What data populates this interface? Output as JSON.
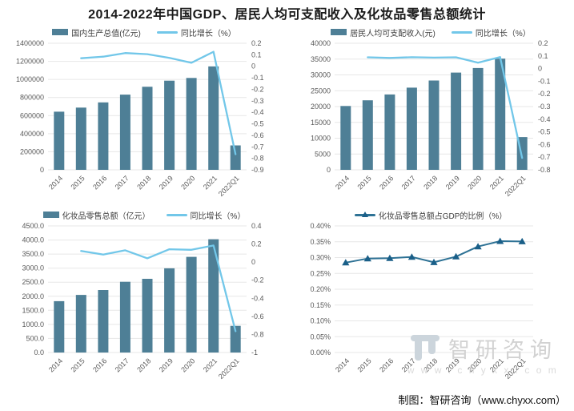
{
  "title": "2014-2022年中国GDP、居民人均可支配收入及化妆品零售总额统计",
  "credit": "制图：智研咨询（www.chyxx.com）",
  "watermark": {
    "brand": "智研咨询",
    "site": "w w w . c h y x x . c o m"
  },
  "colors": {
    "bar": "#4e7f96",
    "line": "#72c7e9",
    "ratio_line": "#2e7295",
    "ratio_marker": "#1a5f88",
    "grid": "#e7e7e7",
    "tick": "#595959",
    "watermark": "#ccd5dc"
  },
  "categories": [
    "2014",
    "2015",
    "2016",
    "2017",
    "2018",
    "2019",
    "2020",
    "2021",
    "2022Q1"
  ],
  "chart_data": [
    {
      "id": "gdp",
      "type": "bar+line",
      "legend": [
        {
          "label": "国内生产总值(亿元)",
          "marker": "bar"
        },
        {
          "label": "同比增长（%）",
          "marker": "line"
        }
      ],
      "categories": [
        "2014",
        "2015",
        "2016",
        "2017",
        "2018",
        "2019",
        "2020",
        "2021",
        "2022Q1"
      ],
      "bars": [
        643563,
        688858,
        746395,
        832036,
        919281,
        986515,
        1015986,
        1143670,
        270178
      ],
      "line": [
        null,
        0.07,
        0.084,
        0.115,
        0.105,
        0.073,
        0.03,
        0.126,
        -0.764
      ],
      "left_max": 1400000,
      "left_min": 0,
      "left_ticks": [
        "1400000",
        "1200000",
        "1000000",
        "800000",
        "600000",
        "400000",
        "200000",
        "0"
      ],
      "right_max": 0.2,
      "right_min": -0.9,
      "right_ticks": [
        "0.2",
        "0.1",
        "0",
        "-0.1",
        "-0.2",
        "-0.3",
        "-0.4",
        "-0.5",
        "-0.6",
        "-0.7",
        "-0.8",
        "-0.9"
      ],
      "legend_position": "top",
      "grid": "horizontal"
    },
    {
      "id": "income",
      "type": "bar+line",
      "legend": [
        {
          "label": "居民人均可支配收入(元)",
          "marker": "bar"
        },
        {
          "label": "同比增长（%）",
          "marker": "line"
        }
      ],
      "categories": [
        "2014",
        "2015",
        "2016",
        "2017",
        "2018",
        "2019",
        "2020",
        "2021",
        "2022Q1"
      ],
      "bars": [
        20167,
        21966,
        23821,
        25974,
        28228,
        30733,
        32189,
        35128,
        10345
      ],
      "line": [
        null,
        0.089,
        0.084,
        0.09,
        0.087,
        0.089,
        0.047,
        0.091,
        -0.706
      ],
      "left_max": 40000,
      "left_min": 0,
      "left_ticks": [
        "40000",
        "35000",
        "30000",
        "25000",
        "20000",
        "15000",
        "10000",
        "5000",
        "0"
      ],
      "right_max": 0.2,
      "right_min": -0.8,
      "right_ticks": [
        "0.2",
        "0.1",
        "0",
        "-0.1",
        "-0.2",
        "-0.3",
        "-0.4",
        "-0.5",
        "-0.6",
        "-0.7",
        "-0.8"
      ],
      "legend_position": "top",
      "grid": "horizontal"
    },
    {
      "id": "cosmetics",
      "type": "bar+line",
      "legend": [
        {
          "label": "化妆品零售总额（亿元）",
          "marker": "bar"
        },
        {
          "label": "同比增长（%）",
          "marker": "line"
        }
      ],
      "categories": [
        "2014",
        "2015",
        "2016",
        "2017",
        "2018",
        "2019",
        "2020",
        "2021",
        "2022Q1"
      ],
      "bars": [
        1825,
        2049,
        2222,
        2514,
        2619,
        2992,
        3400,
        4026,
        949
      ],
      "line": [
        null,
        0.123,
        0.084,
        0.131,
        0.042,
        0.142,
        0.136,
        0.184,
        -0.764
      ],
      "left_max": 4500,
      "left_min": 0,
      "left_ticks": [
        "4500.0",
        "4000.0",
        "3500.0",
        "3000.0",
        "2500.0",
        "2000.0",
        "1500.0",
        "1000.0",
        "500.0",
        "0.0"
      ],
      "right_max": 0.4,
      "right_min": -1,
      "right_ticks": [
        "0.4",
        "0.2",
        "0",
        "-0.2",
        "-0.4",
        "-0.6",
        "-0.8",
        "-1"
      ],
      "legend_position": "top",
      "grid": "horizontal"
    },
    {
      "id": "ratio",
      "type": "line",
      "legend": [
        {
          "label": "化妆品零售总额占GDP的比例（%）",
          "marker": "triangle-line"
        }
      ],
      "categories": [
        "2014",
        "2015",
        "2016",
        "2017",
        "2018",
        "2019",
        "2020",
        "2021",
        "2022Q1"
      ],
      "line": [
        0.284,
        0.297,
        0.298,
        0.302,
        0.285,
        0.303,
        0.335,
        0.352,
        0.351
      ],
      "left_max": 0.4,
      "left_min": 0,
      "left_ticks": [
        "0.40%",
        "0.35%",
        "0.30%",
        "0.25%",
        "0.20%",
        "0.15%",
        "0.10%",
        "0.05%",
        "0.00%"
      ],
      "right_ticks": null,
      "legend_position": "top",
      "grid": "horizontal"
    }
  ]
}
